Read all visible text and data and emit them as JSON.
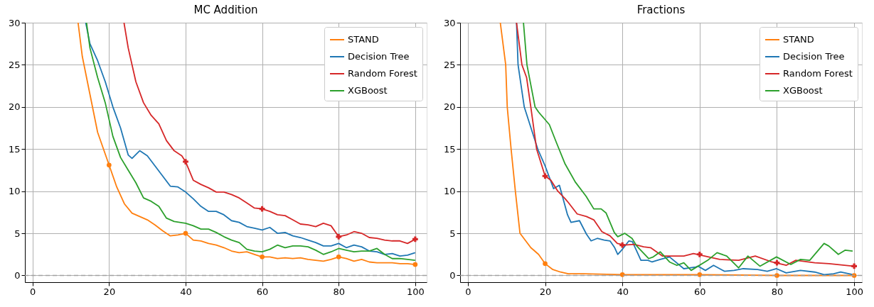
{
  "chart_data": [
    {
      "type": "line",
      "title": "MC Addition",
      "xlim": [
        -2,
        103
      ],
      "xticks": [
        0,
        20,
        40,
        60,
        80,
        100
      ],
      "ylim": [
        -0.8,
        30
      ],
      "yticks": [
        0,
        5,
        10,
        15,
        20,
        25,
        30
      ],
      "grid": true,
      "legend": "top right",
      "ref_lines": [
        {
          "axis": "y",
          "value": 0,
          "color": "#a0a0a0",
          "line_style": "dashed"
        }
      ],
      "series": [
        {
          "type": "scatter",
          "color": "#ff7f0e",
          "marker": "circle",
          "x": [
            20,
            40,
            60,
            80,
            100
          ],
          "values": [
            13.1,
            5.0,
            2.2,
            2.2,
            1.3
          ]
        },
        {
          "type": "scatter",
          "color": "#d62728",
          "marker": "cross",
          "x": [
            40,
            60,
            80,
            100
          ],
          "values": [
            13.5,
            7.9,
            4.6,
            4.3
          ]
        },
        {
          "name": "STAND",
          "color": "#ff7f0e",
          "x": [
            11.9,
            13,
            15,
            17,
            20,
            22,
            24,
            26,
            28,
            30,
            32,
            34,
            36,
            38,
            40,
            42,
            44,
            46,
            48,
            50,
            52,
            54,
            56,
            58,
            60,
            62,
            64,
            66,
            68,
            70,
            72,
            74,
            76,
            78,
            80,
            82,
            84,
            86,
            88,
            90,
            92,
            94,
            96,
            98,
            100
          ],
          "values": [
            30,
            26,
            21.5,
            17,
            13.1,
            10.5,
            8.5,
            7.4,
            7,
            6.6,
            6,
            5.3,
            4.7,
            4.8,
            5.0,
            4.2,
            4.1,
            3.8,
            3.6,
            3.3,
            2.9,
            2.7,
            2.8,
            2.5,
            2.2,
            2.2,
            2.0,
            2.1,
            2.0,
            2.1,
            1.9,
            1.8,
            1.7,
            1.9,
            2.2,
            2.0,
            1.7,
            1.9,
            1.6,
            1.5,
            1.5,
            1.5,
            1.4,
            1.4,
            1.3
          ]
        },
        {
          "name": "Decision Tree",
          "color": "#1f77b4",
          "x": [
            13.9,
            15,
            17,
            19,
            21,
            23,
            25,
            26,
            28,
            30,
            32,
            34,
            36,
            38,
            40,
            42,
            44,
            46,
            48,
            50,
            52,
            54,
            56,
            58,
            60,
            62,
            64,
            66,
            68,
            70,
            72,
            74,
            76,
            78,
            80,
            82,
            84,
            86,
            88,
            90,
            92,
            94,
            96,
            98,
            100
          ],
          "values": [
            30,
            27.5,
            25.5,
            23,
            20,
            17.5,
            14.3,
            13.9,
            14.8,
            14.2,
            13,
            11.8,
            10.6,
            10.5,
            9.9,
            9.1,
            8.2,
            7.6,
            7.6,
            7.2,
            6.5,
            6.3,
            5.8,
            5.6,
            5.4,
            5.7,
            5.0,
            5.1,
            4.7,
            4.5,
            4.2,
            3.9,
            3.5,
            3.5,
            3.8,
            3.3,
            3.6,
            3.4,
            2.9,
            2.8,
            2.5,
            2.6,
            2.3,
            2.4,
            2.7
          ]
        },
        {
          "name": "Random Forest",
          "color": "#d62728",
          "x": [
            23.9,
            25,
            27,
            29,
            31,
            33,
            35,
            37,
            39,
            40,
            42,
            44,
            46,
            48,
            50,
            52,
            54,
            56,
            58,
            60,
            62,
            64,
            66,
            68,
            70,
            72,
            74,
            76,
            78,
            80,
            82,
            84,
            86,
            88,
            90,
            92,
            94,
            96,
            98,
            100
          ],
          "values": [
            30,
            27,
            23,
            20.5,
            19,
            18,
            16,
            14.8,
            14.2,
            13.5,
            11.3,
            10.8,
            10.4,
            9.9,
            9.9,
            9.6,
            9.2,
            8.6,
            8.0,
            7.9,
            7.6,
            7.2,
            7.1,
            6.6,
            6.1,
            6.0,
            5.8,
            6.2,
            5.9,
            4.6,
            4.8,
            5.2,
            5.0,
            4.5,
            4.4,
            4.2,
            4.1,
            4.1,
            3.8,
            4.3
          ]
        },
        {
          "name": "XGBoost",
          "color": "#2ca02c",
          "x": [
            14.1,
            15,
            17,
            19,
            21,
            23,
            25,
            27,
            29,
            31,
            33,
            35,
            37,
            40,
            42,
            44,
            46,
            48,
            50,
            52,
            54,
            56,
            58,
            60,
            62,
            64,
            66,
            68,
            70,
            72,
            74,
            76,
            78,
            80,
            82,
            84,
            86,
            88,
            90,
            92,
            94,
            96,
            98,
            100
          ],
          "values": [
            30,
            27,
            23.5,
            20.5,
            16.5,
            14,
            12.5,
            11,
            9.2,
            8.8,
            8.2,
            6.8,
            6.4,
            6.2,
            5.9,
            5.5,
            5.5,
            5.1,
            4.6,
            4.2,
            3.9,
            3.1,
            2.9,
            2.8,
            3.1,
            3.6,
            3.3,
            3.5,
            3.5,
            3.4,
            3.0,
            2.5,
            2.8,
            3.2,
            3.0,
            2.8,
            2.9,
            2.9,
            3.2,
            2.5,
            2.0,
            2.0,
            1.9,
            1.8
          ]
        }
      ]
    },
    {
      "type": "line",
      "title": "Fractions",
      "xlim": [
        -2,
        102
      ],
      "xticks": [
        0,
        20,
        40,
        60,
        80,
        100
      ],
      "ylim": [
        -0.8,
        30
      ],
      "yticks": [
        0,
        5,
        10,
        15,
        20,
        25,
        30
      ],
      "grid": true,
      "legend": "top right",
      "ref_lines": [
        {
          "axis": "y",
          "value": 0,
          "color": "#a0a0a0",
          "line_style": "dashed"
        }
      ],
      "series": [
        {
          "type": "scatter",
          "color": "#ff7f0e",
          "marker": "circle",
          "x": [
            20,
            40,
            60,
            80,
            100
          ],
          "values": [
            1.4,
            0.1,
            0.1,
            0.0,
            0.0
          ]
        },
        {
          "type": "scatter",
          "color": "#d62728",
          "marker": "cross",
          "x": [
            20,
            40,
            60,
            80,
            100
          ],
          "values": [
            11.8,
            3.6,
            2.5,
            1.5,
            1.1
          ]
        },
        {
          "name": "STAND",
          "color": "#ff7f0e",
          "x": [
            8.4,
            9.8,
            10.2,
            11.2,
            12.3,
            13.5,
            16.3,
            18.3,
            20,
            22,
            24,
            26,
            30,
            40,
            50,
            60,
            80,
            100
          ],
          "values": [
            30,
            25,
            20,
            15,
            10,
            5,
            3.3,
            2.5,
            1.4,
            0.7,
            0.4,
            0.2,
            0.2,
            0.1,
            0.1,
            0.1,
            0.0,
            0.0
          ]
        },
        {
          "name": "Decision Tree",
          "color": "#1f77b4",
          "x": [
            12.6,
            13.0,
            14.6,
            18.1,
            20,
            22.2,
            23.7,
            25.8,
            26.7,
            28.9,
            30.7,
            31.9,
            33.5,
            35.3,
            36.8,
            38,
            38.8,
            39.8,
            41.7,
            42.6,
            44.8,
            46.6,
            47.7,
            49.8,
            52.2,
            55.9,
            59.0,
            59.6,
            61.5,
            63.6,
            66.4,
            68.9,
            71.3,
            75.0,
            77.5,
            79.9,
            82.4,
            86.1,
            89.8,
            92.2,
            94.7,
            96.5,
            99.7
          ],
          "values": [
            30,
            25,
            20,
            15,
            13,
            10.3,
            10.7,
            7.2,
            6.3,
            6.5,
            4.9,
            4.1,
            4.4,
            4.2,
            4.1,
            3.3,
            2.5,
            3.0,
            4.1,
            4.0,
            1.8,
            1.8,
            1.6,
            1.9,
            2.2,
            0.8,
            1.0,
            1.1,
            0.6,
            1.2,
            0.5,
            0.6,
            0.8,
            0.7,
            0.5,
            0.8,
            0.3,
            0.6,
            0.4,
            0.1,
            0.2,
            0.4,
            0.1
          ]
        },
        {
          "name": "Random Forest",
          "color": "#d62728",
          "x": [
            12.6,
            14.0,
            15.2,
            16.3,
            17.8,
            20,
            21.5,
            23.3,
            25.2,
            26.1,
            28.3,
            30.7,
            32.6,
            34.7,
            36.8,
            38.7,
            40.6,
            43,
            45.5,
            47.3,
            50.4,
            55.9,
            58.4,
            65.2,
            70.1,
            74.4,
            78.7,
            82.4,
            84.9,
            89.8,
            93.5,
            99.7
          ],
          "values": [
            30,
            25,
            23.5,
            20,
            15,
            11.8,
            11.3,
            10,
            9.1,
            8.6,
            7.3,
            7.0,
            6.6,
            5.2,
            4.7,
            3.8,
            3.6,
            3.7,
            3.4,
            3.3,
            2.3,
            2.3,
            2.6,
            1.9,
            1.8,
            2.3,
            1.6,
            1.2,
            1.8,
            1.5,
            1.4,
            1.1
          ]
        },
        {
          "name": "XGBoost",
          "color": "#2ca02c",
          "x": [
            14.4,
            15.3,
            17.4,
            18.3,
            19.8,
            21.1,
            22.9,
            25.1,
            27.8,
            30.6,
            32.6,
            34.5,
            35.8,
            37.9,
            38.8,
            40.6,
            42.5,
            43.7,
            46.8,
            48,
            49.8,
            52.2,
            54.1,
            55.9,
            57.8,
            62.1,
            64.5,
            67.0,
            70.1,
            72.5,
            75.6,
            79.9,
            83.6,
            86.1,
            88.5,
            92.2,
            93.4,
            95.9,
            97.7,
            99.6
          ],
          "values": [
            30,
            25,
            20,
            19.4,
            18.6,
            17.9,
            15.8,
            13.3,
            11.1,
            9.4,
            7.9,
            7.9,
            7.4,
            5.1,
            4.6,
            5.0,
            4.4,
            3.5,
            2.0,
            2.2,
            2.8,
            1.6,
            1.2,
            1.5,
            0.6,
            1.8,
            2.7,
            2.3,
            0.9,
            2.3,
            1.1,
            2.2,
            1.3,
            1.9,
            1.8,
            3.8,
            3.5,
            2.5,
            3.0,
            2.9
          ]
        }
      ]
    }
  ]
}
